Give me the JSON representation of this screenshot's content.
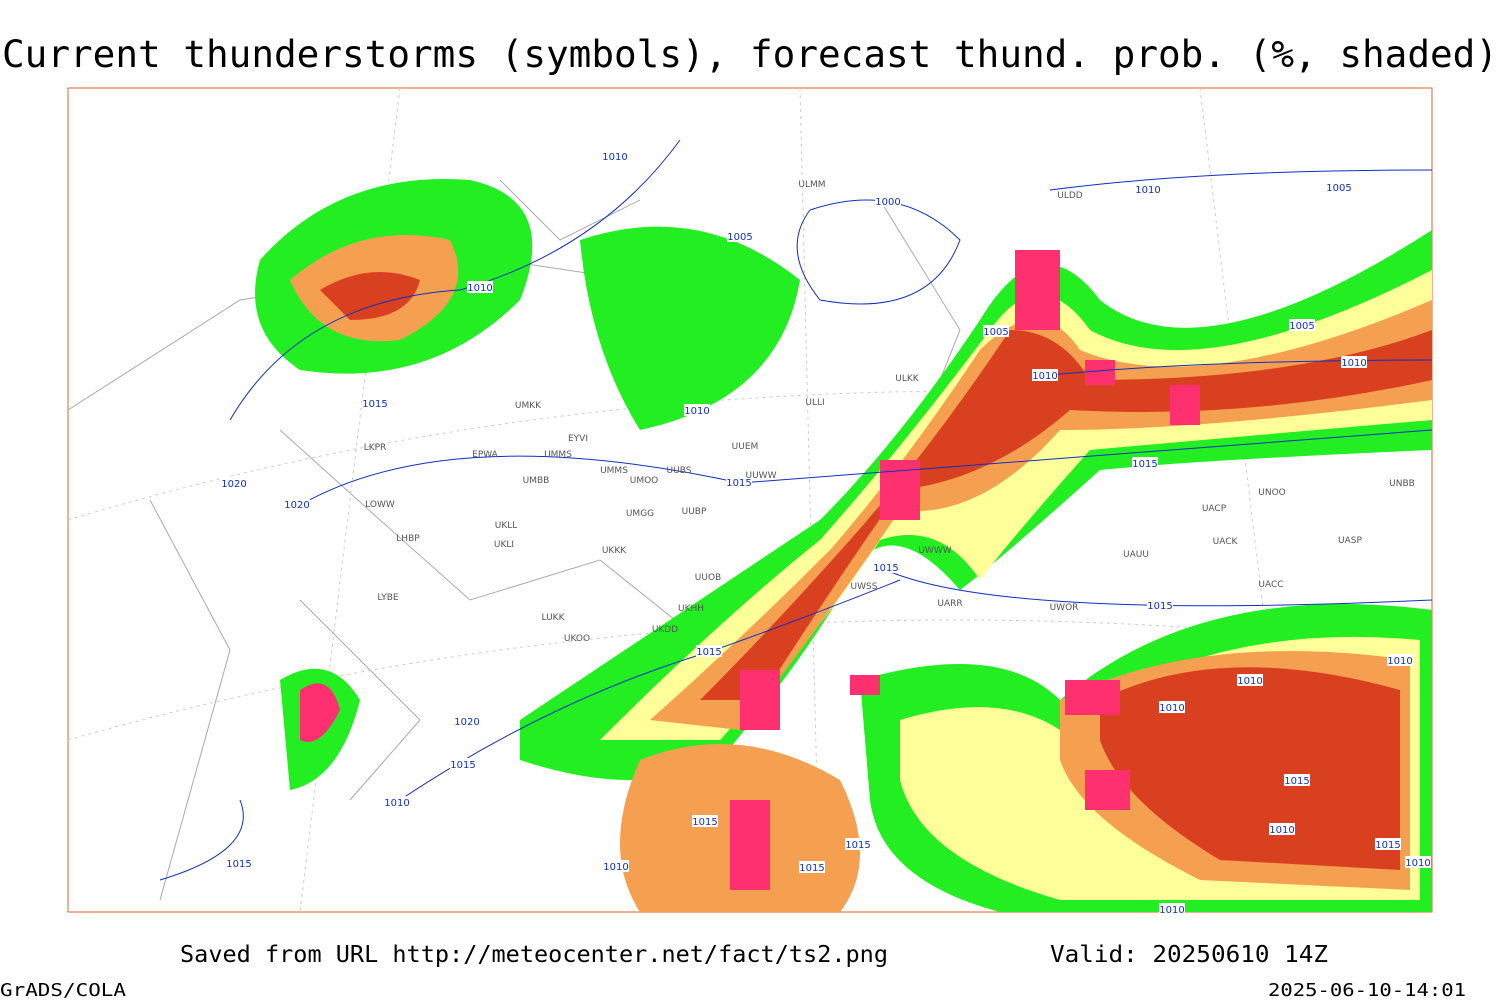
{
  "title": "Current thunderstorms (symbols), forecast thund. prob. (%, shaded)",
  "footer": {
    "source": "Saved from URL http://meteocenter.net/fact/ts2.png",
    "valid": "Valid: 20250610 14Z",
    "software": "GrADS/COLA",
    "timestamp": "2025-06-10-14:01"
  },
  "isobar_labels": [
    "1010",
    "1000",
    "1005",
    "1010",
    "1015",
    "1010",
    "1015",
    "1020",
    "1020",
    "1005",
    "1010",
    "1015",
    "1010",
    "1005",
    "1005",
    "1010",
    "1015",
    "1015",
    "1015",
    "1020",
    "1015",
    "1010",
    "1015",
    "1010",
    "1015",
    "1015",
    "1015",
    "1010",
    "1010",
    "1010",
    "1015",
    "1010",
    "1010",
    "1015",
    "1010"
  ],
  "stations": [
    "ULMM",
    "ULDD",
    "ULLI",
    "ULKK",
    "UMKK",
    "EYVI",
    "UUEM",
    "EPWA",
    "UMMS",
    "LKPR",
    "UMMS",
    "UMOO",
    "UUBS",
    "UUWW",
    "UMBB",
    "LOWW",
    "UKLL",
    "UMGG",
    "UUBP",
    "UKLI",
    "LHBP",
    "UKKK",
    "UUOB",
    "LYBE",
    "UKHH",
    "LUKK",
    "UKDD",
    "UKOO",
    "UACP",
    "UNOO",
    "UACK",
    "UASP",
    "UAUU",
    "UACC",
    "UNBB",
    "UWWW",
    "UWSS",
    "UARR",
    "UWOR"
  ]
}
